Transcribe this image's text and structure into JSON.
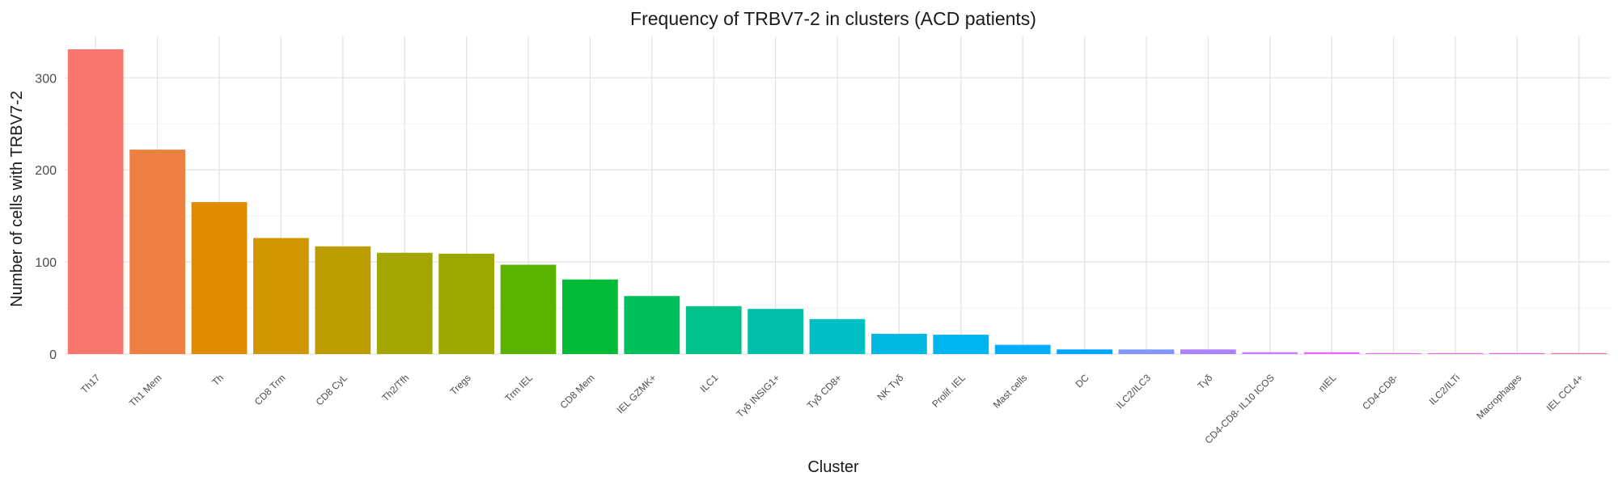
{
  "chart_data": {
    "type": "bar",
    "title": "Frequency of TRBV7-2 in clusters (ACD patients)",
    "xlabel": "Cluster",
    "ylabel": "Number of cells with TRBV7-2",
    "ylim": [
      0,
      345
    ],
    "yticks": [
      0,
      100,
      200,
      300
    ],
    "grid": true,
    "legend": "none",
    "categories": [
      "Th17",
      "Th1 Mem",
      "Th",
      "CD8 Trm",
      "CD8 CyL",
      "Th2/Tfh",
      "Tregs",
      "Trm IEL",
      "CD8 Mem",
      "IEL GZMK+",
      "ILC1",
      "Tγδ INSIG1+",
      "Tγδ CD8+",
      "NK Tγδ",
      "Prolif. IEL",
      "Mast cells",
      "DC",
      "ILC2/ILC3",
      "Tγδ",
      "CD4-CD8- IL10 ICOS",
      "nIEL",
      "CD4-CD8-",
      "ILC2/ILTi",
      "Macrophages",
      "IEL CCL4+"
    ],
    "values": [
      331,
      222,
      165,
      126,
      117,
      110,
      109,
      97,
      81,
      63,
      52,
      49,
      38,
      22,
      21,
      10,
      5,
      5,
      5,
      2,
      2,
      1,
      1,
      1,
      1
    ],
    "colors": [
      "#F8766D",
      "#EC8141",
      "#E08B00",
      "#D09600",
      "#BB9D00",
      "#A3A500",
      "#9CA700",
      "#5BB300",
      "#00BA38",
      "#00BF5D",
      "#00C08B",
      "#00C0AB",
      "#00BFC4",
      "#00B9E3",
      "#00B4EF",
      "#00ADFA",
      "#00A5FF",
      "#7F96FF",
      "#AB82FF",
      "#C77CFF",
      "#E36EF6",
      "#E76BF3",
      "#F066EA",
      "#FA62DB",
      "#FF6C91"
    ]
  }
}
